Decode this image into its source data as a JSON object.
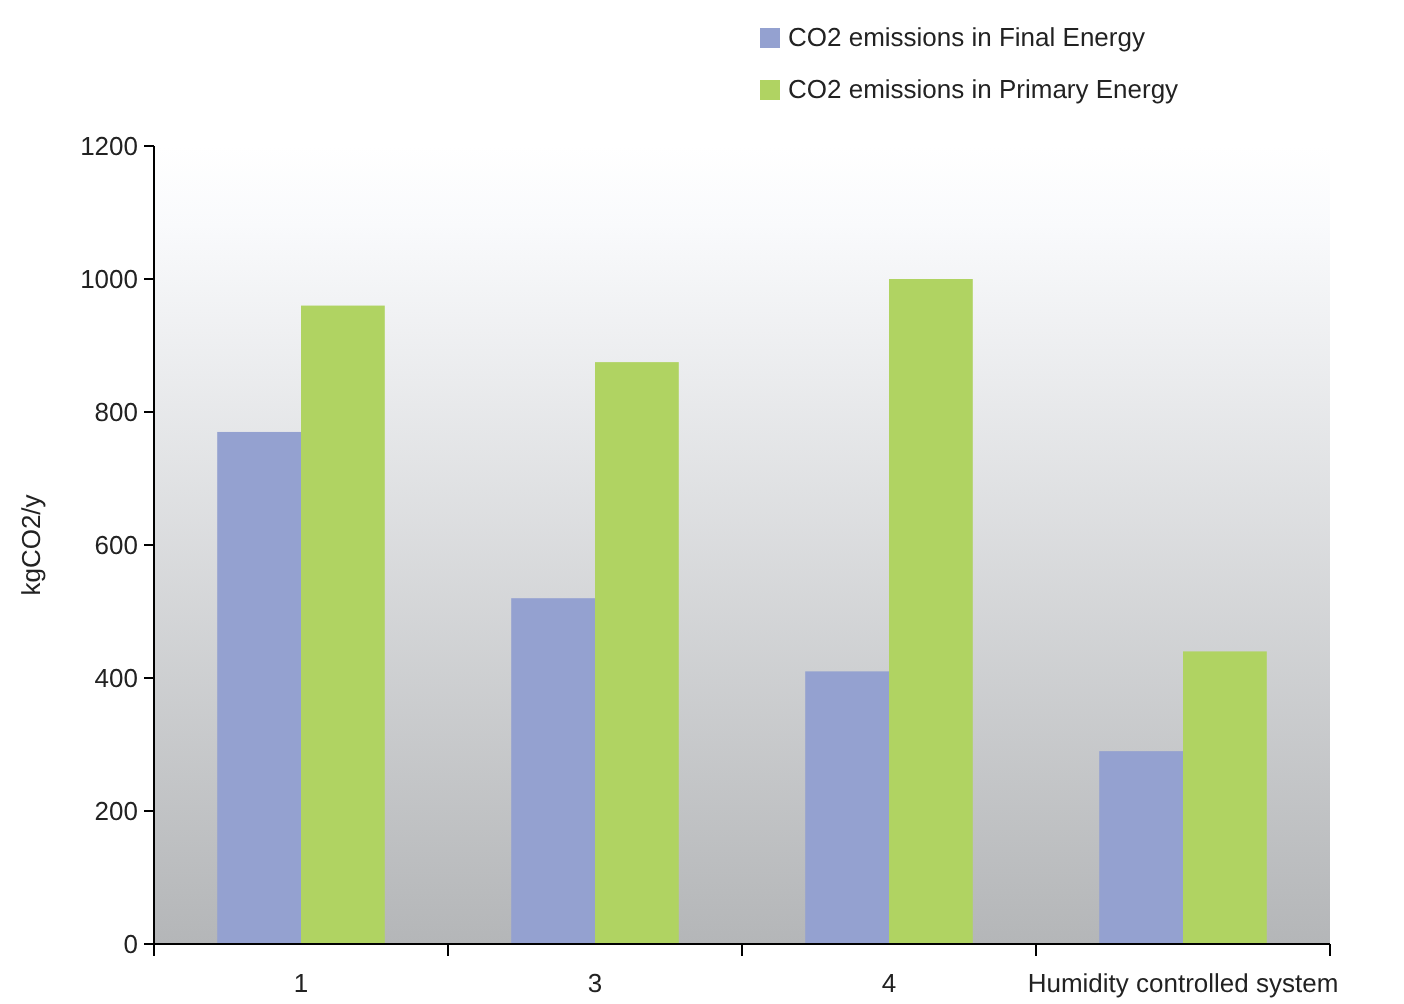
{
  "chart_data": {
    "type": "bar",
    "ylabel": "kgCO2/y",
    "categories": [
      "1",
      "3",
      "4",
      "Humidity controlled system"
    ],
    "series": [
      {
        "name": "CO2 emissions in Final Energy",
        "color": "#94a1d0",
        "values": [
          770,
          520,
          410,
          290
        ]
      },
      {
        "name": "CO2 emissions in Primary Energy",
        "color": "#b0d362",
        "values": [
          960,
          875,
          1000,
          440
        ]
      }
    ],
    "ylim": [
      0,
      1200
    ],
    "yticks": [
      0,
      200,
      400,
      600,
      800,
      1000,
      1200
    ],
    "legend": "top right"
  }
}
